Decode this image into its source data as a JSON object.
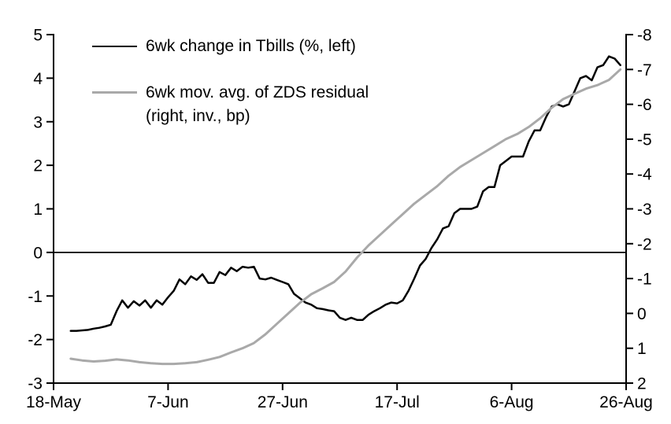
{
  "legend": {
    "items": [
      {
        "label": "6wk change in Tbills (%, left)",
        "label2": "",
        "color": "#000000"
      },
      {
        "label": "6wk mov. avg. of ZDS residual",
        "label2": "(right, inv., bp)",
        "color": "#a9a9a9"
      }
    ]
  },
  "chart_data": {
    "type": "line",
    "title": "",
    "x_axis": {
      "tick_labels": [
        "18-May",
        "7-Jun",
        "27-Jun",
        "17-Jul",
        "6-Aug",
        "26-Aug"
      ],
      "tick_positions_days": [
        0,
        20,
        40,
        60,
        80,
        100
      ],
      "range_days": [
        0,
        100
      ]
    },
    "left_axis": {
      "label": "6wk change in Tbills (%)",
      "top": 5,
      "bottom": -3,
      "ticks": [
        5,
        4,
        3,
        2,
        1,
        0,
        -1,
        -2,
        -3
      ]
    },
    "right_axis": {
      "label": "6wk mov. avg. of ZDS residual (bp)",
      "top": -8,
      "bottom": 2,
      "ticks": [
        -8,
        -7,
        -6,
        -5,
        -4,
        -3,
        -2,
        -1,
        0,
        1,
        2
      ],
      "inverted": true
    },
    "zero_line_left_value": 0,
    "grid": false,
    "legend_position": "top-left-inside",
    "series": [
      {
        "name": "6wk change in Tbills (%, left)",
        "axis": "left",
        "color": "#000000",
        "width": 2.5,
        "points": [
          [
            3,
            -1.8
          ],
          [
            4,
            -1.8
          ],
          [
            5,
            -1.79
          ],
          [
            6,
            -1.78
          ],
          [
            7,
            -1.75
          ],
          [
            8,
            -1.73
          ],
          [
            9,
            -1.7
          ],
          [
            10,
            -1.66
          ],
          [
            11,
            -1.35
          ],
          [
            12,
            -1.1
          ],
          [
            13,
            -1.27
          ],
          [
            14,
            -1.12
          ],
          [
            15,
            -1.22
          ],
          [
            16,
            -1.1
          ],
          [
            17,
            -1.27
          ],
          [
            18,
            -1.1
          ],
          [
            19,
            -1.2
          ],
          [
            20,
            -1.03
          ],
          [
            21,
            -0.88
          ],
          [
            22,
            -0.62
          ],
          [
            23,
            -0.73
          ],
          [
            24,
            -0.55
          ],
          [
            25,
            -0.63
          ],
          [
            26,
            -0.5
          ],
          [
            27,
            -0.7
          ],
          [
            28,
            -0.7
          ],
          [
            29,
            -0.45
          ],
          [
            30,
            -0.52
          ],
          [
            31,
            -0.35
          ],
          [
            32,
            -0.43
          ],
          [
            33,
            -0.33
          ],
          [
            34,
            -0.35
          ],
          [
            35,
            -0.33
          ],
          [
            36,
            -0.6
          ],
          [
            37,
            -0.62
          ],
          [
            38,
            -0.58
          ],
          [
            39,
            -0.63
          ],
          [
            40,
            -0.68
          ],
          [
            41,
            -0.73
          ],
          [
            42,
            -0.95
          ],
          [
            43,
            -1.05
          ],
          [
            44,
            -1.15
          ],
          [
            45,
            -1.2
          ],
          [
            46,
            -1.28
          ],
          [
            47,
            -1.3
          ],
          [
            48,
            -1.33
          ],
          [
            49,
            -1.35
          ],
          [
            50,
            -1.5
          ],
          [
            51,
            -1.55
          ],
          [
            52,
            -1.5
          ],
          [
            53,
            -1.55
          ],
          [
            54,
            -1.55
          ],
          [
            55,
            -1.43
          ],
          [
            56,
            -1.35
          ],
          [
            57,
            -1.28
          ],
          [
            58,
            -1.2
          ],
          [
            59,
            -1.15
          ],
          [
            60,
            -1.17
          ],
          [
            61,
            -1.1
          ],
          [
            62,
            -0.88
          ],
          [
            63,
            -0.6
          ],
          [
            64,
            -0.3
          ],
          [
            65,
            -0.15
          ],
          [
            66,
            0.1
          ],
          [
            67,
            0.3
          ],
          [
            68,
            0.55
          ],
          [
            69,
            0.6
          ],
          [
            70,
            0.9
          ],
          [
            71,
            1.0
          ],
          [
            72,
            1.0
          ],
          [
            73,
            1.0
          ],
          [
            74,
            1.05
          ],
          [
            75,
            1.4
          ],
          [
            76,
            1.5
          ],
          [
            77,
            1.5
          ],
          [
            78,
            2.0
          ],
          [
            79,
            2.1
          ],
          [
            80,
            2.2
          ],
          [
            81,
            2.2
          ],
          [
            82,
            2.2
          ],
          [
            83,
            2.55
          ],
          [
            84,
            2.8
          ],
          [
            85,
            2.8
          ],
          [
            86,
            3.1
          ],
          [
            87,
            3.35
          ],
          [
            88,
            3.4
          ],
          [
            89,
            3.35
          ],
          [
            90,
            3.4
          ],
          [
            91,
            3.7
          ],
          [
            92,
            4.0
          ],
          [
            93,
            4.05
          ],
          [
            94,
            3.95
          ],
          [
            95,
            4.25
          ],
          [
            96,
            4.3
          ],
          [
            97,
            4.5
          ],
          [
            98,
            4.45
          ],
          [
            99,
            4.3
          ]
        ]
      },
      {
        "name": "6wk mov. avg. of ZDS residual (right, inv., bp)",
        "axis": "right",
        "color": "#a9a9a9",
        "width": 3,
        "points": [
          [
            3,
            1.3
          ],
          [
            5,
            1.35
          ],
          [
            7,
            1.38
          ],
          [
            9,
            1.36
          ],
          [
            11,
            1.32
          ],
          [
            13,
            1.35
          ],
          [
            15,
            1.4
          ],
          [
            17,
            1.43
          ],
          [
            19,
            1.45
          ],
          [
            21,
            1.45
          ],
          [
            23,
            1.43
          ],
          [
            25,
            1.4
          ],
          [
            27,
            1.33
          ],
          [
            29,
            1.25
          ],
          [
            31,
            1.12
          ],
          [
            33,
            1.0
          ],
          [
            35,
            0.85
          ],
          [
            37,
            0.6
          ],
          [
            39,
            0.3
          ],
          [
            41,
            0.0
          ],
          [
            43,
            -0.3
          ],
          [
            45,
            -0.55
          ],
          [
            47,
            -0.72
          ],
          [
            49,
            -0.9
          ],
          [
            51,
            -1.2
          ],
          [
            53,
            -1.6
          ],
          [
            55,
            -1.95
          ],
          [
            57,
            -2.25
          ],
          [
            59,
            -2.55
          ],
          [
            61,
            -2.85
          ],
          [
            63,
            -3.15
          ],
          [
            65,
            -3.4
          ],
          [
            67,
            -3.65
          ],
          [
            69,
            -3.95
          ],
          [
            71,
            -4.2
          ],
          [
            73,
            -4.4
          ],
          [
            75,
            -4.6
          ],
          [
            77,
            -4.8
          ],
          [
            79,
            -5.0
          ],
          [
            81,
            -5.15
          ],
          [
            83,
            -5.35
          ],
          [
            85,
            -5.6
          ],
          [
            87,
            -5.9
          ],
          [
            89,
            -6.15
          ],
          [
            91,
            -6.3
          ],
          [
            93,
            -6.45
          ],
          [
            95,
            -6.55
          ],
          [
            97,
            -6.7
          ],
          [
            99,
            -7.0
          ]
        ]
      }
    ]
  }
}
